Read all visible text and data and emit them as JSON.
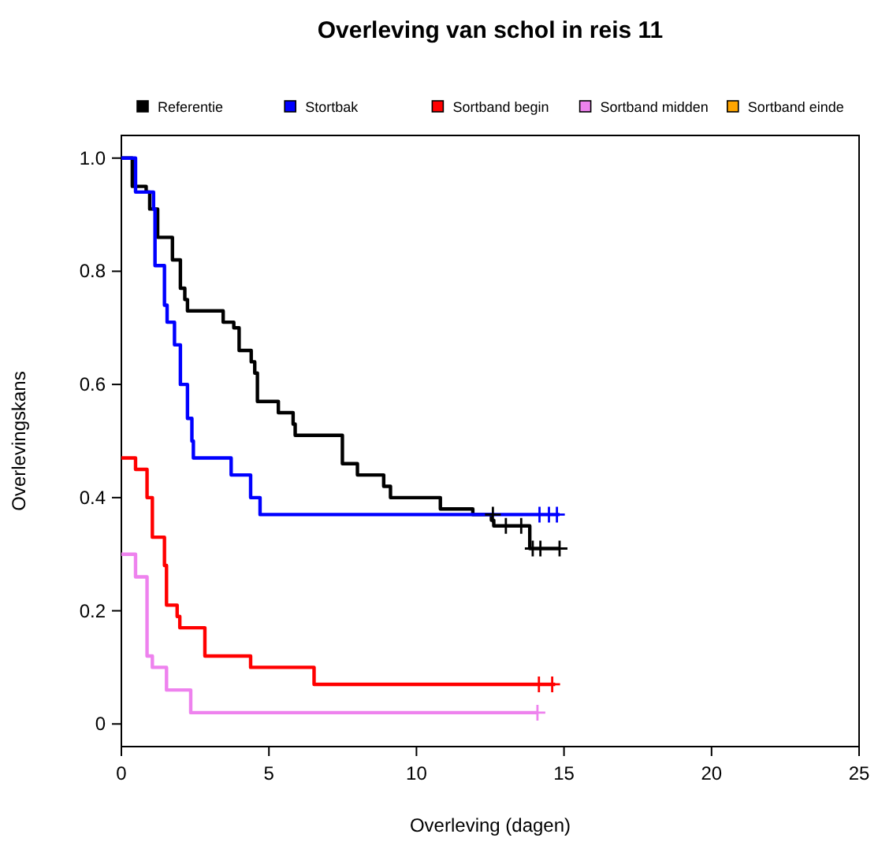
{
  "chart_data": {
    "type": "step",
    "title": "Overleving van schol in reis 11",
    "xlabel": "Overleving (dagen)",
    "ylabel": "Overlevingskans",
    "xlim": [
      0,
      25
    ],
    "xticks": [
      0,
      5,
      10,
      15,
      20,
      25
    ],
    "ylim": [
      -0.04,
      1.04
    ],
    "yticks": [
      {
        "value": 0,
        "label": "0"
      },
      0.2,
      0.4,
      0.6,
      0.8,
      {
        "value": 1,
        "label": "1.0"
      }
    ],
    "grid": false,
    "legend": "top",
    "series": [
      {
        "name": "Referentie",
        "color": "#000000",
        "x": [
          0,
          0.37,
          0.84,
          0.96,
          1.23,
          1.73,
          2.0,
          2.15,
          2.24,
          3.45,
          3.81,
          3.99,
          4.4,
          4.52,
          4.61,
          5.32,
          5.82,
          5.89,
          7.49,
          8.0,
          8.89,
          9.12,
          10.81,
          11.91,
          12.54,
          12.62,
          13.84,
          14.85
        ],
        "values": [
          1,
          0.95,
          0.94,
          0.91,
          0.86,
          0.82,
          0.77,
          0.75,
          0.73,
          0.71,
          0.7,
          0.66,
          0.64,
          0.62,
          0.57,
          0.55,
          0.53,
          0.51,
          0.46,
          0.44,
          0.42,
          0.4,
          0.38,
          0.37,
          0.36,
          0.35,
          0.31,
          0.31
        ]
      },
      {
        "name": "Stortbak",
        "color": "#0000ff",
        "x": [
          0,
          0.48,
          1.09,
          1.14,
          1.46,
          1.55,
          1.8,
          2.0,
          2.24,
          2.39,
          2.44,
          3.72,
          4.38,
          4.7,
          14.85
        ],
        "values": [
          1,
          0.94,
          0.91,
          0.81,
          0.74,
          0.71,
          0.67,
          0.6,
          0.54,
          0.5,
          0.47,
          0.44,
          0.4,
          0.37,
          0.37
        ]
      },
      {
        "name": "Sortband begin",
        "color": "#ff0000",
        "x": [
          0,
          0.48,
          0.87,
          1.05,
          1.46,
          1.53,
          1.89,
          1.98,
          2.83,
          4.38,
          6.53,
          14.7
        ],
        "values": [
          0.47,
          0.45,
          0.4,
          0.33,
          0.28,
          0.21,
          0.19,
          0.17,
          0.12,
          0.1,
          0.07,
          0.07
        ]
      },
      {
        "name": "Sortband midden",
        "color": "#ee82ee",
        "x": [
          0,
          0.48,
          0.87,
          1.05,
          1.53,
          2.35,
          14.1
        ],
        "values": [
          0.3,
          0.26,
          0.12,
          0.1,
          0.06,
          0.02,
          0.02
        ]
      },
      {
        "name": "Sortband einde",
        "color": "#ffa500"
      },
      {
        "type": "scatter",
        "marker": "cross",
        "color": "#000000",
        "x": [
          12.59,
          13.03,
          13.55,
          13.94,
          14.2,
          14.85
        ],
        "values": [
          0.37,
          0.35,
          0.35,
          0.31,
          0.31,
          0.31
        ]
      },
      {
        "type": "scatter",
        "marker": "cross",
        "color": "#0000ff",
        "x": [
          14.17,
          14.49,
          14.76
        ],
        "values": [
          0.37,
          0.37,
          0.37
        ]
      },
      {
        "type": "scatter",
        "marker": "cross",
        "color": "#ff0000",
        "x": [
          14.15,
          14.6
        ],
        "values": [
          0.07,
          0.07
        ]
      },
      {
        "type": "scatter",
        "marker": "cross",
        "color": "#ee82ee",
        "x": [
          14.1
        ],
        "values": [
          0.02
        ]
      }
    ]
  }
}
